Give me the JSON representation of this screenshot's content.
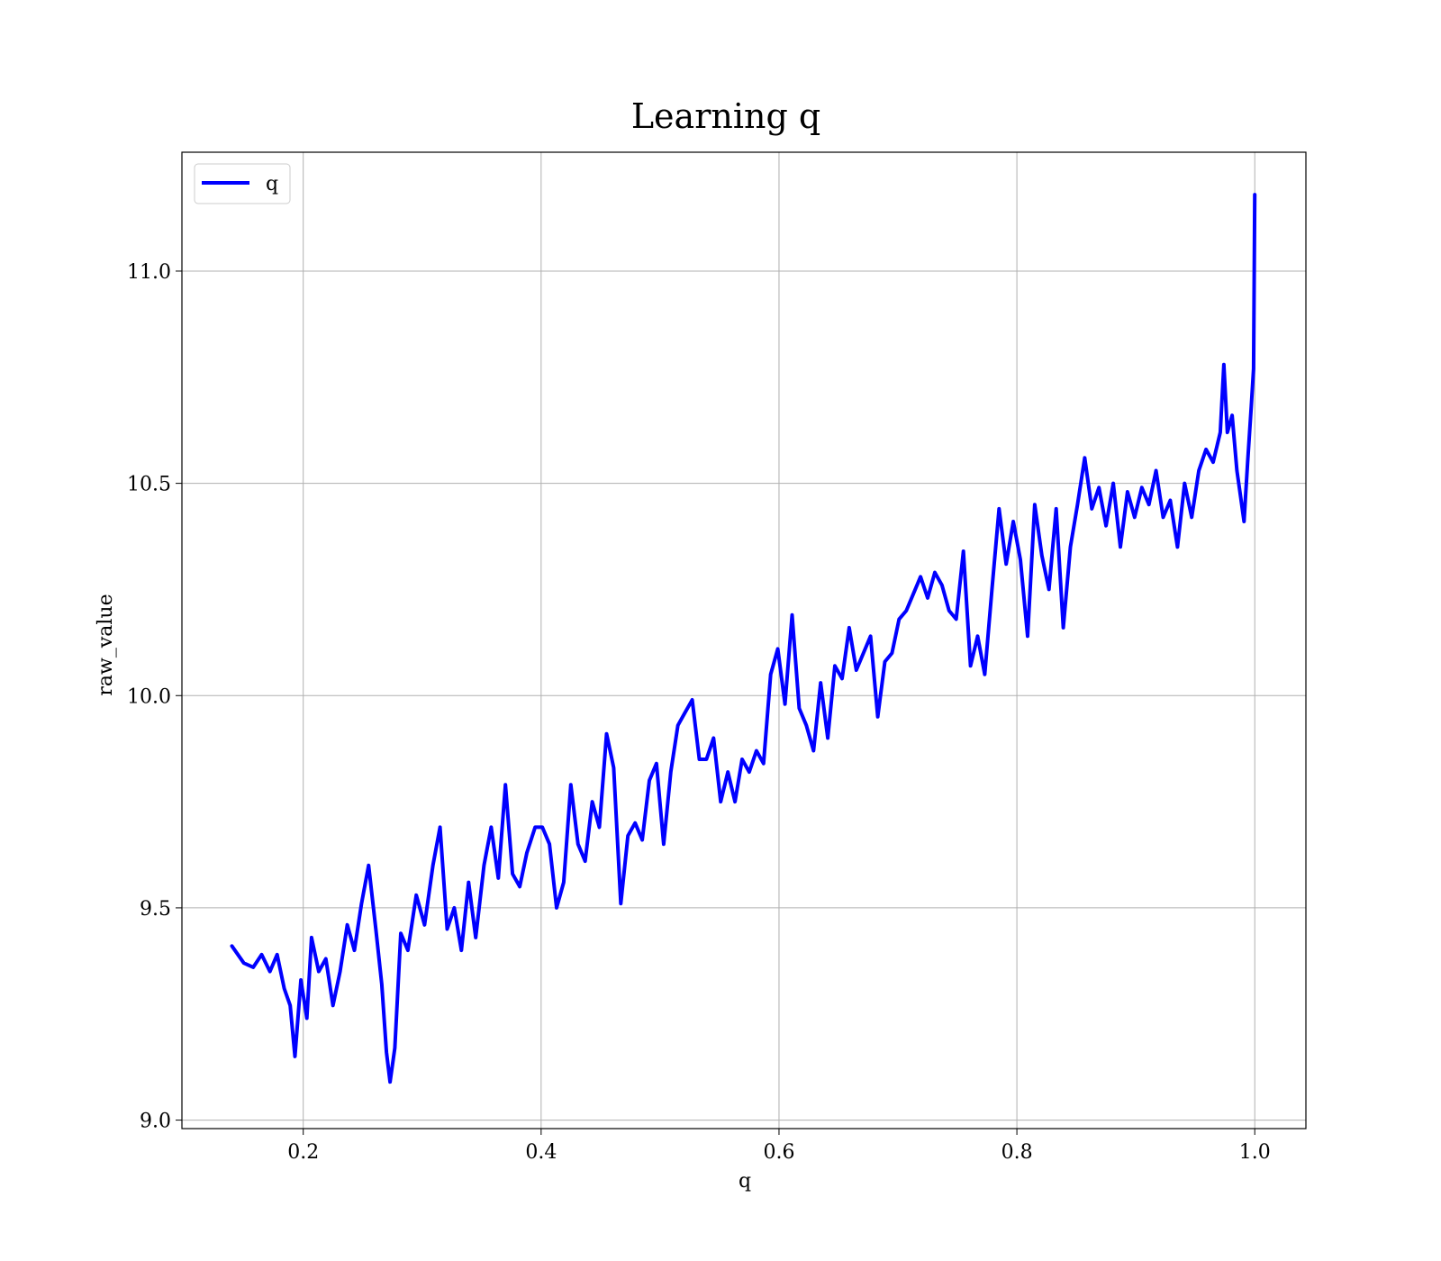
{
  "chart_data": {
    "type": "line",
    "title": "Learning q",
    "xlabel": "q",
    "ylabel": "raw_value",
    "xlim": [
      0.098,
      1.043
    ],
    "ylim": [
      8.98,
      11.28
    ],
    "xticks": [
      0.2,
      0.4,
      0.6,
      0.8,
      1.0
    ],
    "xtick_labels": [
      "0.2",
      "0.4",
      "0.6",
      "0.8",
      "1.0"
    ],
    "yticks": [
      9.0,
      9.5,
      10.0,
      10.5,
      11.0
    ],
    "ytick_labels": [
      "9.0",
      "9.5",
      "10.0",
      "10.5",
      "11.0"
    ],
    "grid": true,
    "legend_position": "upper-left",
    "series": [
      {
        "name": "q",
        "color": "#0000ff",
        "x": [
          0.14,
          0.15,
          0.158,
          0.165,
          0.172,
          0.178,
          0.184,
          0.189,
          0.193,
          0.198,
          0.203,
          0.207,
          0.213,
          0.219,
          0.225,
          0.231,
          0.237,
          0.243,
          0.249,
          0.255,
          0.261,
          0.266,
          0.27,
          0.273,
          0.277,
          0.282,
          0.288,
          0.295,
          0.302,
          0.309,
          0.315,
          0.321,
          0.327,
          0.333,
          0.339,
          0.345,
          0.352,
          0.358,
          0.364,
          0.37,
          0.376,
          0.382,
          0.388,
          0.395,
          0.401,
          0.407,
          0.413,
          0.419,
          0.425,
          0.431,
          0.437,
          0.443,
          0.449,
          0.455,
          0.461,
          0.467,
          0.473,
          0.479,
          0.485,
          0.491,
          0.497,
          0.503,
          0.509,
          0.515,
          0.521,
          0.527,
          0.533,
          0.539,
          0.545,
          0.551,
          0.557,
          0.563,
          0.569,
          0.575,
          0.581,
          0.587,
          0.593,
          0.599,
          0.605,
          0.611,
          0.617,
          0.623,
          0.629,
          0.635,
          0.641,
          0.647,
          0.653,
          0.659,
          0.665,
          0.671,
          0.677,
          0.683,
          0.689,
          0.695,
          0.701,
          0.707,
          0.713,
          0.719,
          0.725,
          0.731,
          0.737,
          0.743,
          0.749,
          0.755,
          0.761,
          0.767,
          0.773,
          0.779,
          0.785,
          0.791,
          0.797,
          0.803,
          0.809,
          0.815,
          0.821,
          0.827,
          0.833,
          0.839,
          0.845,
          0.851,
          0.857,
          0.863,
          0.869,
          0.875,
          0.881,
          0.887,
          0.893,
          0.899,
          0.905,
          0.911,
          0.917,
          0.923,
          0.929,
          0.935,
          0.941,
          0.947,
          0.953,
          0.959,
          0.965,
          0.971,
          0.974,
          0.977,
          0.981,
          0.985,
          0.988,
          0.991,
          0.994,
          0.997,
          0.999,
          1.0
        ],
        "y": [
          9.41,
          9.37,
          9.36,
          9.39,
          9.35,
          9.39,
          9.31,
          9.27,
          9.15,
          9.33,
          9.24,
          9.43,
          9.35,
          9.38,
          9.27,
          9.35,
          9.46,
          9.4,
          9.51,
          9.6,
          9.45,
          9.32,
          9.16,
          9.09,
          9.17,
          9.44,
          9.4,
          9.53,
          9.46,
          9.6,
          9.69,
          9.45,
          9.5,
          9.4,
          9.56,
          9.43,
          9.6,
          9.69,
          9.57,
          9.79,
          9.58,
          9.55,
          9.63,
          9.69,
          9.69,
          9.65,
          9.5,
          9.56,
          9.79,
          9.65,
          9.61,
          9.75,
          9.69,
          9.91,
          9.83,
          9.51,
          9.67,
          9.7,
          9.66,
          9.8,
          9.84,
          9.65,
          9.82,
          9.93,
          9.96,
          9.99,
          9.85,
          9.85,
          9.9,
          9.75,
          9.82,
          9.75,
          9.85,
          9.82,
          9.87,
          9.84,
          10.05,
          10.11,
          9.98,
          10.19,
          9.97,
          9.93,
          9.87,
          10.03,
          9.9,
          10.07,
          10.04,
          10.16,
          10.06,
          10.1,
          10.14,
          9.95,
          10.08,
          10.1,
          10.18,
          10.2,
          10.24,
          10.28,
          10.23,
          10.29,
          10.26,
          10.2,
          10.18,
          10.34,
          10.07,
          10.14,
          10.05,
          10.25,
          10.44,
          10.31,
          10.41,
          10.32,
          10.14,
          10.45,
          10.33,
          10.25,
          10.44,
          10.16,
          10.35,
          10.45,
          10.56,
          10.44,
          10.49,
          10.4,
          10.5,
          10.35,
          10.48,
          10.42,
          10.49,
          10.45,
          10.53,
          10.42,
          10.46,
          10.35,
          10.5,
          10.42,
          10.53,
          10.58,
          10.55,
          10.62,
          10.78,
          10.62,
          10.66,
          10.53,
          10.47,
          10.41,
          10.55,
          10.68,
          10.77,
          11.18
        ]
      }
    ]
  }
}
